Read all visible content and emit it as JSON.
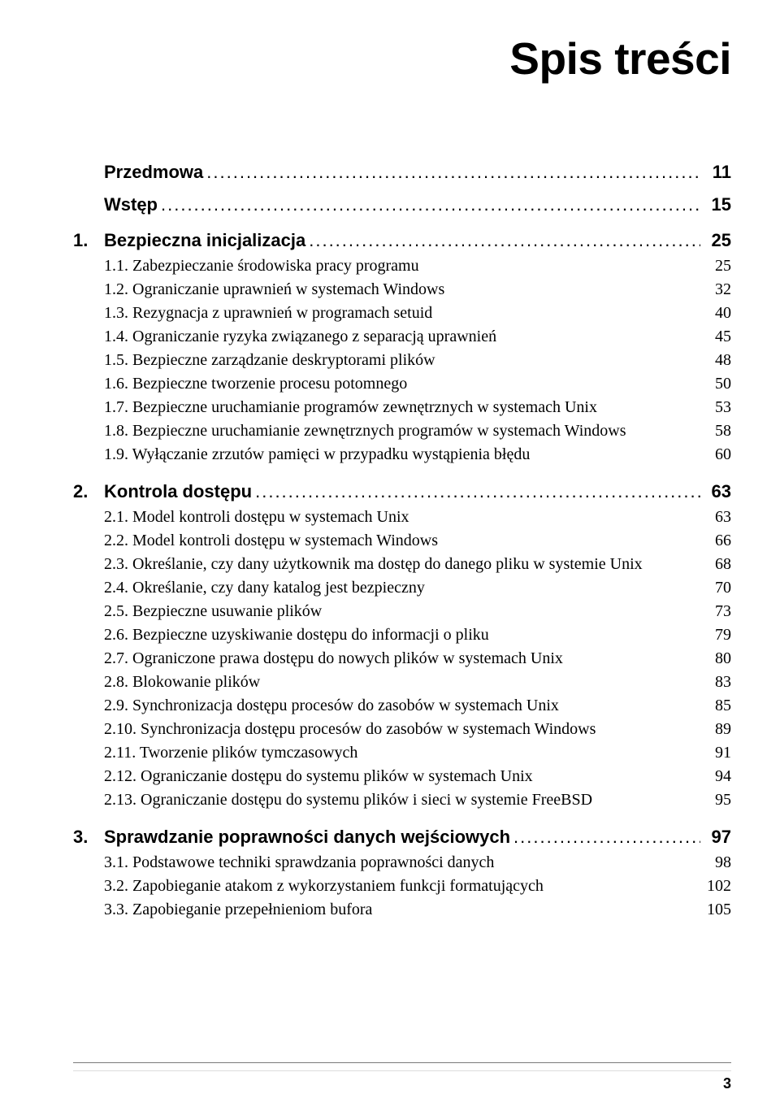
{
  "title": "Spis treści",
  "top": [
    {
      "label": "Przedmowa",
      "page": "11"
    },
    {
      "label": "Wstęp",
      "page": "15"
    }
  ],
  "chapters": [
    {
      "num": "1.",
      "label": "Bezpieczna inicjalizacja",
      "page": "25",
      "items": [
        {
          "label": "1.1. Zabezpieczanie środowiska pracy programu",
          "page": "25"
        },
        {
          "label": "1.2. Ograniczanie uprawnień w systemach Windows",
          "page": "32"
        },
        {
          "label": "1.3. Rezygnacja z uprawnień w programach setuid",
          "page": "40"
        },
        {
          "label": "1.4. Ograniczanie ryzyka związanego z separacją uprawnień",
          "page": "45"
        },
        {
          "label": "1.5. Bezpieczne zarządzanie deskryptorami plików",
          "page": "48"
        },
        {
          "label": "1.6. Bezpieczne tworzenie procesu potomnego",
          "page": "50"
        },
        {
          "label": "1.7. Bezpieczne uruchamianie programów zewnętrznych w systemach Unix",
          "page": "53"
        },
        {
          "label": "1.8. Bezpieczne uruchamianie zewnętrznych programów w systemach Windows",
          "page": "58"
        },
        {
          "label": "1.9. Wyłączanie zrzutów pamięci w przypadku wystąpienia błędu",
          "page": "60"
        }
      ]
    },
    {
      "num": "2.",
      "label": "Kontrola dostępu",
      "page": "63",
      "items": [
        {
          "label": "2.1. Model kontroli dostępu w systemach Unix",
          "page": "63"
        },
        {
          "label": "2.2. Model kontroli dostępu w systemach Windows",
          "page": "66"
        },
        {
          "label": "2.3. Określanie, czy dany użytkownik ma dostęp do danego pliku w systemie Unix",
          "page": "68"
        },
        {
          "label": "2.4. Określanie, czy dany katalog jest bezpieczny",
          "page": "70"
        },
        {
          "label": "2.5. Bezpieczne usuwanie plików",
          "page": "73"
        },
        {
          "label": "2.6. Bezpieczne uzyskiwanie dostępu do informacji o pliku",
          "page": "79"
        },
        {
          "label": "2.7. Ograniczone prawa dostępu do nowych plików w systemach Unix",
          "page": "80"
        },
        {
          "label": "2.8. Blokowanie plików",
          "page": "83"
        },
        {
          "label": "2.9. Synchronizacja dostępu procesów do zasobów w systemach Unix",
          "page": "85"
        },
        {
          "label": "2.10. Synchronizacja dostępu procesów do zasobów w systemach Windows",
          "page": "89"
        },
        {
          "label": "2.11. Tworzenie plików tymczasowych",
          "page": "91"
        },
        {
          "label": "2.12. Ograniczanie dostępu do systemu plików w systemach Unix",
          "page": "94"
        },
        {
          "label": "2.13. Ograniczanie dostępu do systemu plików i sieci w systemie FreeBSD",
          "page": "95"
        }
      ]
    },
    {
      "num": "3.",
      "label": "Sprawdzanie poprawności danych wejściowych",
      "page": "97",
      "items": [
        {
          "label": "3.1. Podstawowe techniki sprawdzania poprawności danych",
          "page": "98"
        },
        {
          "label": "3.2. Zapobieganie atakom z wykorzystaniem funkcji formatujących",
          "page": "102"
        },
        {
          "label": "3.3. Zapobieganie przepełnieniom bufora",
          "page": "105"
        }
      ]
    }
  ],
  "page_number": "3"
}
